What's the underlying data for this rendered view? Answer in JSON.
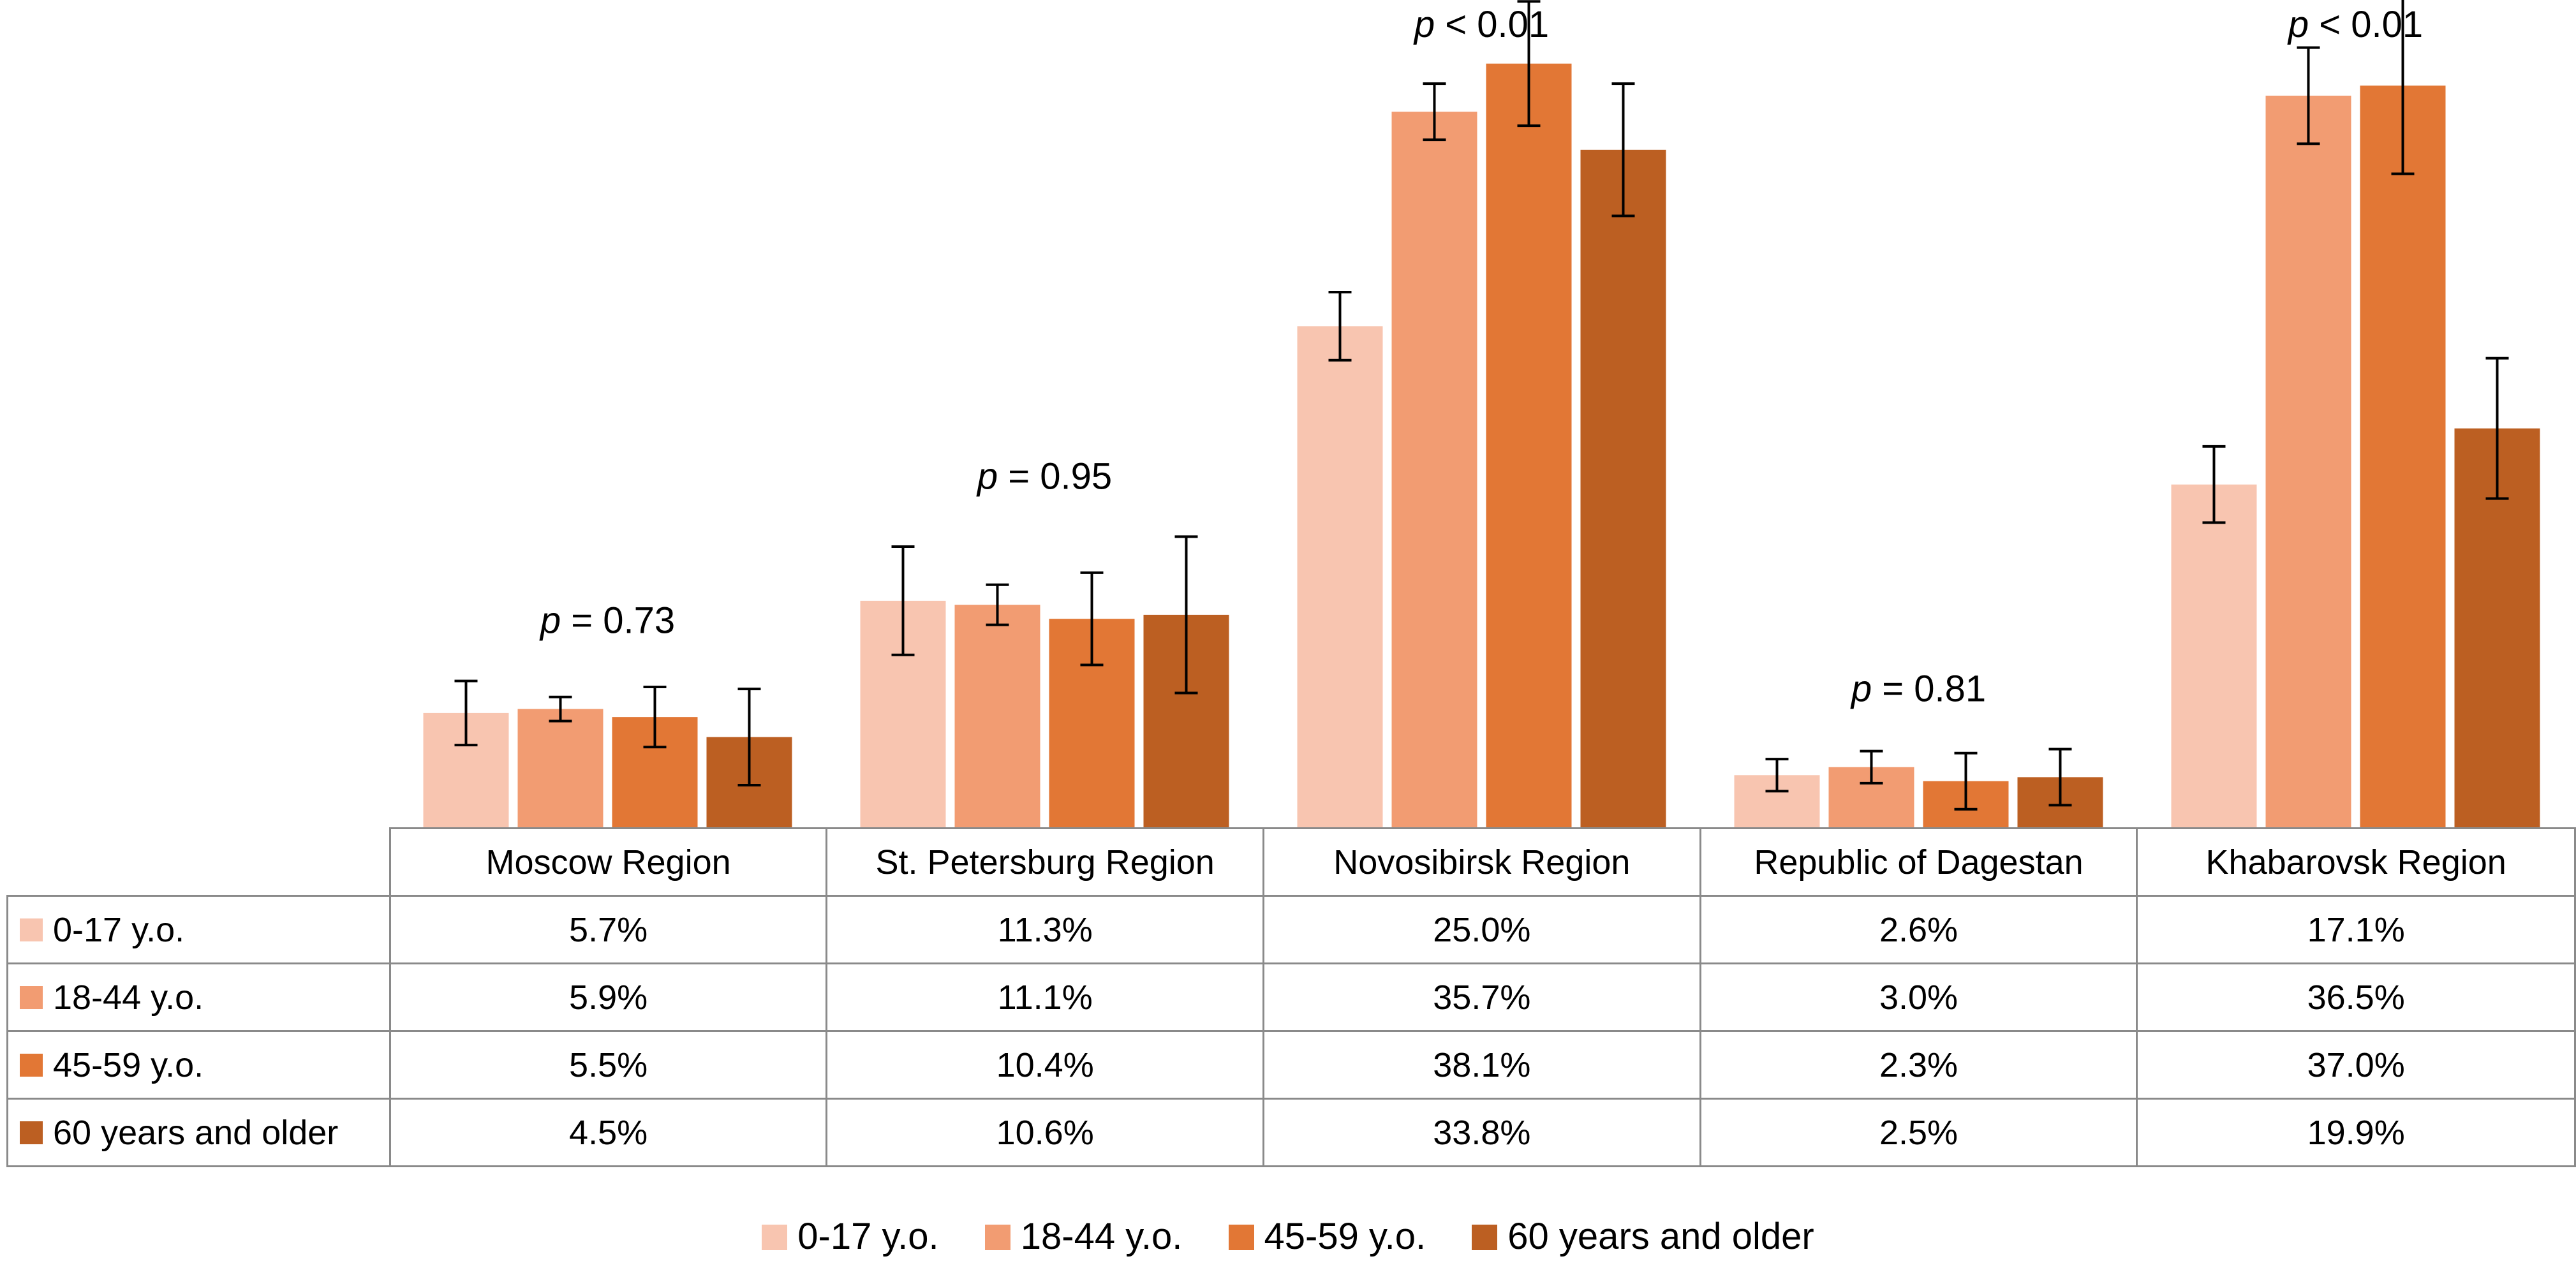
{
  "chart_data": {
    "type": "bar",
    "title": "",
    "xlabel": "",
    "ylabel": "",
    "ylim": [
      0,
      40
    ],
    "grid": false,
    "legend_position": "bottom-center",
    "categories": [
      "Moscow Region",
      "St. Petersburg Region",
      "Novosibirsk Region",
      "Republic of Dagestan",
      "Khabarovsk Region"
    ],
    "series": [
      {
        "name": "0-17 y.o.",
        "color": "#F8C5B0",
        "values": [
          5.7,
          11.3,
          25.0,
          2.6,
          17.1
        ],
        "labels": [
          "5.7%",
          "11.3%",
          "25.0%",
          "2.6%",
          "17.1%"
        ],
        "err": [
          1.6,
          2.7,
          1.7,
          0.8,
          1.9
        ]
      },
      {
        "name": "18-44 y.o.",
        "color": "#F29C72",
        "values": [
          5.9,
          11.1,
          35.7,
          3.0,
          36.5
        ],
        "labels": [
          "5.9%",
          "11.1%",
          "35.7%",
          "3.0%",
          "36.5%"
        ],
        "err": [
          0.6,
          1.0,
          1.4,
          0.8,
          2.4
        ]
      },
      {
        "name": "45-59 y.o.",
        "color": "#E27735",
        "values": [
          5.5,
          10.4,
          38.1,
          2.3,
          37.0
        ],
        "labels": [
          "5.5%",
          "10.4%",
          "38.1%",
          "2.3%",
          "37.0%"
        ],
        "err": [
          1.5,
          2.3,
          3.1,
          1.4,
          4.4
        ]
      },
      {
        "name": "60 years and older",
        "color": "#BC5F22",
        "values": [
          4.5,
          10.6,
          33.8,
          2.5,
          19.9
        ],
        "labels": [
          "4.5%",
          "10.6%",
          "33.8%",
          "2.5%",
          "19.9%"
        ],
        "err": [
          2.4,
          3.9,
          3.3,
          1.4,
          3.5
        ]
      }
    ],
    "annotations": [
      {
        "category": "Moscow Region",
        "p": "p",
        "text": " = 0.73"
      },
      {
        "category": "St. Petersburg Region",
        "p": "p",
        "text": " = 0.95"
      },
      {
        "category": "Novosibirsk Region",
        "p": "p",
        "text": " < 0.01"
      },
      {
        "category": "Republic of Dagestan",
        "p": "p",
        "text": " = 0.81"
      },
      {
        "category": "Khabarovsk Region",
        "p": "p",
        "text": " < 0.01"
      }
    ]
  }
}
